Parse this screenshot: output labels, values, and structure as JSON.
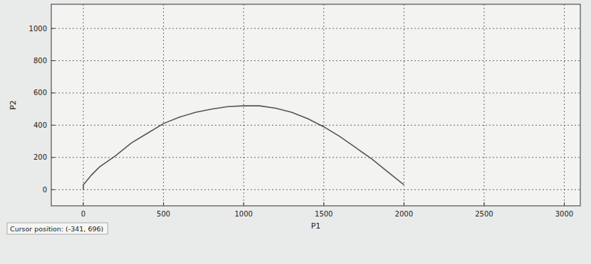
{
  "chart_data": {
    "type": "line",
    "xlabel": "P1",
    "ylabel": "P2",
    "annotation": "Cursor position:  (-341, 696)",
    "x": [
      0,
      0,
      50,
      100,
      200,
      300,
      400,
      500,
      600,
      700,
      800,
      900,
      1000,
      1100,
      1200,
      1300,
      1400,
      1500,
      1600,
      1700,
      1800,
      1900,
      2000
    ],
    "series": [
      {
        "color": "#555555",
        "values": [
          0,
          30,
          90,
          140,
          210,
          290,
          350,
          410,
          450,
          480,
          500,
          515,
          520,
          520,
          505,
          480,
          440,
          390,
          330,
          260,
          190,
          110,
          30
        ]
      }
    ],
    "xlim": [
      -200,
      3100
    ],
    "ylim": [
      -100,
      1150
    ],
    "xticks": [
      0,
      500,
      1000,
      1500,
      2000,
      2500,
      3000
    ],
    "yticks": [
      0,
      200,
      400,
      600,
      800,
      1000
    ],
    "grid": true,
    "line_style": "solid"
  }
}
